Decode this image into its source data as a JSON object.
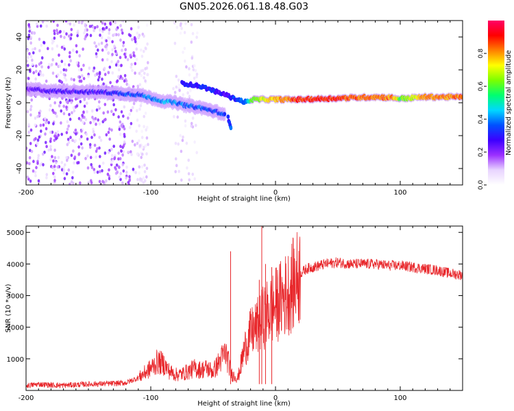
{
  "title": "GN05.2026.061.18.48.G03",
  "chart_data": [
    {
      "type": "heatmap",
      "name": "spectrogram",
      "xlabel": "Height of straight line (km)",
      "ylabel": "Frequency (Hz)",
      "xlim": [
        -200,
        150
      ],
      "ylim": [
        -50,
        50
      ],
      "xticks": [
        -200,
        -100,
        0,
        100
      ],
      "yticks": [
        -40,
        -20,
        0,
        20,
        40
      ],
      "colorbar": {
        "label": "Normalized spectral amplitude",
        "range": [
          0,
          1
        ],
        "ticks": [
          "0.0",
          "0.2",
          "0.4",
          "0.6",
          "0.8"
        ],
        "tick_values": [
          0.0,
          0.2,
          0.4,
          0.6,
          0.8
        ],
        "colormap": [
          "#ffffff",
          "#e8d4ff",
          "#9b30ff",
          "#3c00ff",
          "#0050ff",
          "#00d8ff",
          "#00ff70",
          "#7cff00",
          "#ffff00",
          "#ff8000",
          "#ff0000",
          "#ff0066"
        ]
      },
      "main_trace": [
        {
          "x": -200,
          "f": 8,
          "a": 0.22
        },
        {
          "x": -190,
          "f": 8,
          "a": 0.24
        },
        {
          "x": -180,
          "f": 7,
          "a": 0.24
        },
        {
          "x": -170,
          "f": 7,
          "a": 0.26
        },
        {
          "x": -160,
          "f": 7,
          "a": 0.26
        },
        {
          "x": -150,
          "f": 6.5,
          "a": 0.27
        },
        {
          "x": -140,
          "f": 6.5,
          "a": 0.28
        },
        {
          "x": -130,
          "f": 6,
          "a": 0.3
        },
        {
          "x": -120,
          "f": 5.5,
          "a": 0.34
        },
        {
          "x": -110,
          "f": 5,
          "a": 0.36
        },
        {
          "x": -100,
          "f": 3,
          "a": 0.4
        },
        {
          "x": -95,
          "f": 2,
          "a": 0.42
        },
        {
          "x": -90,
          "f": 1,
          "a": 0.42
        },
        {
          "x": -85,
          "f": 0.5,
          "a": 0.42
        },
        {
          "x": -80,
          "f": 0,
          "a": 0.4
        },
        {
          "x": -75,
          "f": -1,
          "a": 0.38
        },
        {
          "x": -70,
          "f": -2,
          "a": 0.38
        },
        {
          "x": -65,
          "f": -2.5,
          "a": 0.36
        },
        {
          "x": -60,
          "f": -3,
          "a": 0.36
        },
        {
          "x": -55,
          "f": -4,
          "a": 0.34
        },
        {
          "x": -50,
          "f": -5,
          "a": 0.34
        },
        {
          "x": -45,
          "f": -6,
          "a": 0.34
        },
        {
          "x": -40,
          "f": -8,
          "a": 0.32
        }
      ],
      "secondary_trace": [
        {
          "x": -75,
          "f": 12,
          "a": 0.3
        },
        {
          "x": -68,
          "f": 11,
          "a": 0.3
        },
        {
          "x": -60,
          "f": 10,
          "a": 0.3
        },
        {
          "x": -52,
          "f": 8,
          "a": 0.3
        },
        {
          "x": -45,
          "f": 6,
          "a": 0.28
        },
        {
          "x": -40,
          "f": 5,
          "a": 0.28
        },
        {
          "x": -35,
          "f": 3,
          "a": 0.3
        },
        {
          "x": -30,
          "f": 2,
          "a": 0.34
        },
        {
          "x": -25,
          "f": 0.5,
          "a": 0.4
        },
        {
          "x": -20,
          "f": 1,
          "a": 0.45
        }
      ],
      "spike_trace": [
        {
          "x": -38,
          "f": -9,
          "a": 0.3
        },
        {
          "x": -37,
          "f": -12,
          "a": 0.32
        },
        {
          "x": -36,
          "f": -15,
          "a": 0.36
        },
        {
          "x": -35.5,
          "f": -17,
          "a": 0.38
        }
      ],
      "steady_trace": [
        {
          "x": -20,
          "f": 2,
          "a": 0.6
        },
        {
          "x": 0,
          "f": 2,
          "a": 0.78
        },
        {
          "x": 20,
          "f": 2,
          "a": 0.88
        },
        {
          "x": 40,
          "f": 2.5,
          "a": 0.9
        },
        {
          "x": 60,
          "f": 3,
          "a": 0.85
        },
        {
          "x": 80,
          "f": 3.5,
          "a": 0.82
        },
        {
          "x": 95,
          "f": 3,
          "a": 0.8
        },
        {
          "x": 100,
          "f": 2.5,
          "a": 0.6
        },
        {
          "x": 120,
          "f": 3.5,
          "a": 0.8
        },
        {
          "x": 150,
          "f": 3.5,
          "a": 0.82
        }
      ]
    },
    {
      "type": "line",
      "name": "snr",
      "xlabel": "Height of straight line (km)",
      "ylabel": "SNR (10 * v/v)",
      "xlim": [
        -200,
        150
      ],
      "ylim": [
        0,
        5200
      ],
      "xticks": [
        -200,
        -100,
        0,
        100
      ],
      "yticks": [
        1000,
        2000,
        3000,
        4000,
        5000
      ],
      "color": "#e8262a",
      "series": [
        {
          "name": "SNR",
          "x": [
            -200,
            -190,
            -180,
            -170,
            -160,
            -150,
            -140,
            -130,
            -120,
            -110,
            -105,
            -100,
            -95,
            -90,
            -85,
            -80,
            -75,
            -70,
            -65,
            -60,
            -55,
            -50,
            -45,
            -40,
            -35,
            -30,
            -25,
            -20,
            -15,
            -10,
            -5,
            0,
            5,
            10,
            15,
            20,
            25,
            30,
            35,
            40,
            50,
            60,
            70,
            80,
            90,
            100,
            110,
            120,
            130,
            140,
            150
          ],
          "y": [
            150,
            200,
            170,
            160,
            180,
            200,
            210,
            220,
            240,
            400,
            550,
            700,
            900,
            850,
            600,
            500,
            520,
            600,
            700,
            650,
            700,
            600,
            900,
            1200,
            500,
            400,
            1300,
            1800,
            2000,
            2300,
            2500,
            2700,
            2900,
            3100,
            3400,
            3700,
            3850,
            3900,
            3950,
            4000,
            4050,
            4000,
            4000,
            4000,
            3950,
            3950,
            3900,
            3850,
            3800,
            3700,
            3650
          ]
        }
      ],
      "spikes": [
        {
          "x": -36,
          "y": 4400
        },
        {
          "x": -11,
          "y": 5200
        },
        {
          "x": -13,
          "y": 3500
        },
        {
          "x": -8,
          "y": 4000
        },
        {
          "x": -3,
          "y": 3900
        }
      ]
    }
  ]
}
